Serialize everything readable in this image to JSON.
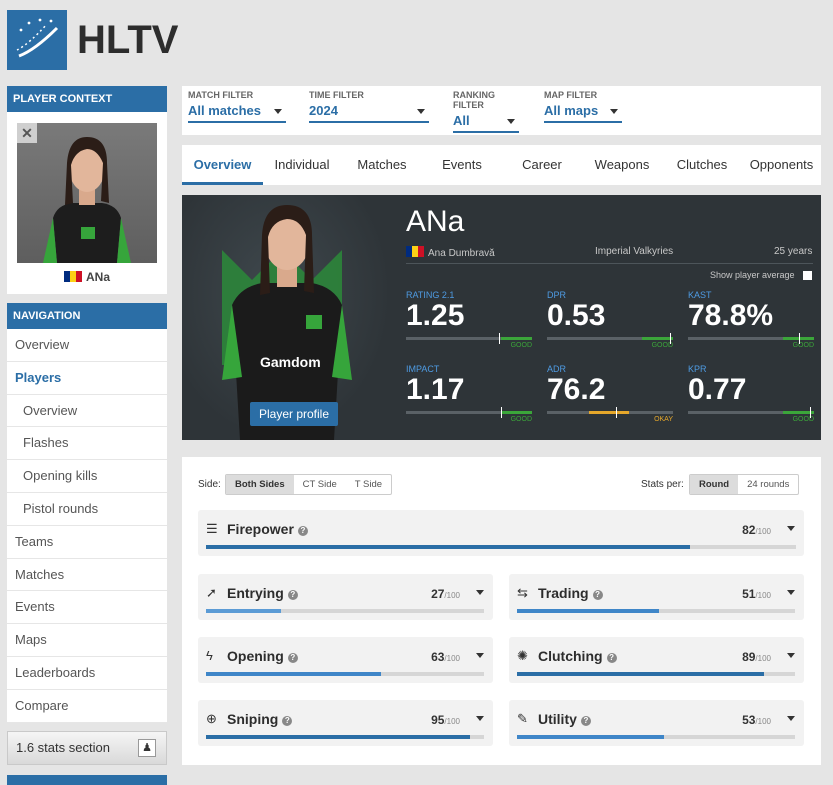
{
  "site": {
    "logo_text": "HLTV",
    "accent": "#2b6ea6"
  },
  "sidebar": {
    "context_header": "PLAYER CONTEXT",
    "context_player": "ANa",
    "nav_header": "NAVIGATION",
    "nav_items": [
      {
        "label": "Overview",
        "sub": false,
        "active": false
      },
      {
        "label": "Players",
        "sub": false,
        "active": true
      },
      {
        "label": "Overview",
        "sub": true,
        "active": false
      },
      {
        "label": "Flashes",
        "sub": true,
        "active": false
      },
      {
        "label": "Opening kills",
        "sub": true,
        "active": false
      },
      {
        "label": "Pistol rounds",
        "sub": true,
        "active": false
      },
      {
        "label": "Teams",
        "sub": false,
        "active": false
      },
      {
        "label": "Matches",
        "sub": false,
        "active": false
      },
      {
        "label": "Events",
        "sub": false,
        "active": false
      },
      {
        "label": "Maps",
        "sub": false,
        "active": false
      },
      {
        "label": "Leaderboards",
        "sub": false,
        "active": false
      },
      {
        "label": "Compare",
        "sub": false,
        "active": false
      }
    ],
    "legacy_link": "1.6 stats section"
  },
  "filters": [
    {
      "label": "MATCH FILTER",
      "value": "All matches"
    },
    {
      "label": "TIME FILTER",
      "value": "2024"
    },
    {
      "label": "RANKING FILTER",
      "value": "All"
    },
    {
      "label": "MAP FILTER",
      "value": "All maps"
    }
  ],
  "tabs": [
    "Overview",
    "Individual",
    "Matches",
    "Events",
    "Career",
    "Weapons",
    "Clutches",
    "Opponents"
  ],
  "active_tab": "Overview",
  "player": {
    "nickname": "ANa",
    "real_name": "Ana Dumbravă",
    "team": "Imperial Valkyries",
    "age": "25 years",
    "show_average_label": "Show player average",
    "profile_button": "Player profile",
    "jersey_sponsor": "Gamdom"
  },
  "hero_stats": [
    {
      "label": "RATING 2.1",
      "value": "1.25",
      "grade": "GOOD",
      "level": 0.74,
      "grade_color": "#3ba53a"
    },
    {
      "label": "DPR",
      "value": "0.53",
      "grade": "GOOD",
      "level": 0.98,
      "grade_color": "#3ba53a"
    },
    {
      "label": "KAST",
      "value": "78.8%",
      "grade": "GOOD",
      "level": 0.88,
      "grade_color": "#3ba53a"
    },
    {
      "label": "IMPACT",
      "value": "1.17",
      "grade": "GOOD",
      "level": 0.75,
      "grade_color": "#3ba53a"
    },
    {
      "label": "ADR",
      "value": "76.2",
      "grade": "OKAY",
      "level": 0.55,
      "grade_color": "#e5a72b"
    },
    {
      "label": "KPR",
      "value": "0.77",
      "grade": "GOOD",
      "level": 0.97,
      "grade_color": "#3ba53a"
    }
  ],
  "panel": {
    "side_label": "Side:",
    "sides": [
      "Both Sides",
      "CT Side",
      "T Side"
    ],
    "stats_per_label": "Stats per:",
    "stats_per": [
      "Round",
      "24 rounds"
    ],
    "categories": [
      {
        "name": "Firepower",
        "score": "82",
        "max": "/100",
        "icon": "firepower-icon",
        "glyph": "☰"
      },
      {
        "name": "Entrying",
        "score": "27",
        "max": "/100",
        "icon": "entrying-icon",
        "glyph": "➚"
      },
      {
        "name": "Trading",
        "score": "51",
        "max": "/100",
        "icon": "trading-icon",
        "glyph": "⇆"
      },
      {
        "name": "Opening",
        "score": "63",
        "max": "/100",
        "icon": "opening-icon",
        "glyph": "ϟ"
      },
      {
        "name": "Clutching",
        "score": "89",
        "max": "/100",
        "icon": "clutching-icon",
        "glyph": "✺"
      },
      {
        "name": "Sniping",
        "score": "95",
        "max": "/100",
        "icon": "sniping-icon",
        "glyph": "⊕"
      },
      {
        "name": "Utility",
        "score": "53",
        "max": "/100",
        "icon": "utility-icon",
        "glyph": "✎"
      }
    ]
  }
}
